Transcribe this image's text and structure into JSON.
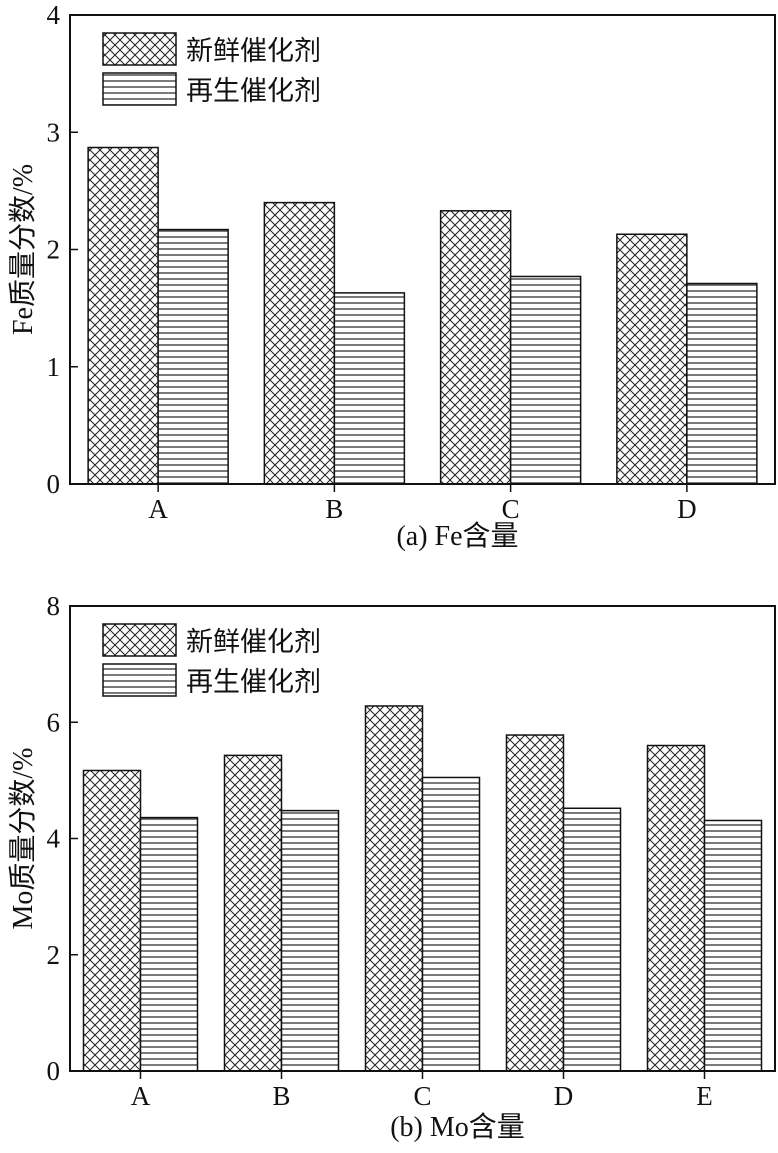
{
  "chart_data": [
    {
      "type": "bar",
      "title": "",
      "caption": "(a) Fe含量",
      "xlabel": "",
      "ylabel": "Fe质量分数/%",
      "ylim": [
        0,
        4
      ],
      "yticks": [
        0,
        1,
        2,
        3,
        4
      ],
      "categories": [
        "A",
        "B",
        "C",
        "D"
      ],
      "series": [
        {
          "name": "新鲜催化剂",
          "pattern": "crosshatch",
          "values": [
            2.87,
            2.4,
            2.33,
            2.13
          ]
        },
        {
          "name": "再生催化剂",
          "pattern": "horizontal",
          "values": [
            2.17,
            1.63,
            1.77,
            1.71
          ]
        }
      ],
      "legend_position": "top-left",
      "grid": false
    },
    {
      "type": "bar",
      "title": "",
      "caption": "(b) Mo含量",
      "xlabel": "",
      "ylabel": "Mo质量分数/%",
      "ylim": [
        0,
        8
      ],
      "yticks": [
        0,
        2,
        4,
        6,
        8
      ],
      "categories": [
        "A",
        "B",
        "C",
        "D",
        "E"
      ],
      "series": [
        {
          "name": "新鲜催化剂",
          "pattern": "crosshatch",
          "values": [
            5.17,
            5.43,
            6.28,
            5.78,
            5.6
          ]
        },
        {
          "name": "再生催化剂",
          "pattern": "horizontal",
          "values": [
            4.36,
            4.48,
            5.05,
            4.52,
            4.31
          ]
        }
      ],
      "legend_position": "top-left",
      "grid": false
    }
  ]
}
